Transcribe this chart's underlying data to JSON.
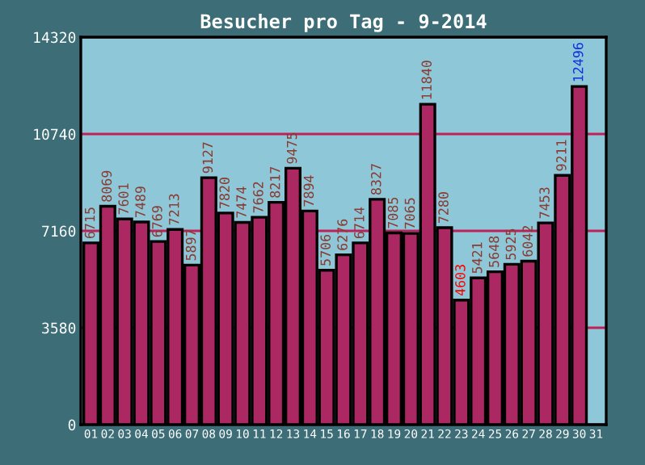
{
  "chart_data": {
    "type": "bar",
    "title": "Besucher pro Tag - 9-2014",
    "categories": [
      "01",
      "02",
      "03",
      "04",
      "05",
      "06",
      "07",
      "08",
      "09",
      "10",
      "11",
      "12",
      "13",
      "14",
      "15",
      "16",
      "17",
      "18",
      "19",
      "20",
      "21",
      "22",
      "23",
      "24",
      "25",
      "26",
      "27",
      "28",
      "29",
      "30",
      "31"
    ],
    "values": [
      6715,
      8069,
      7601,
      7489,
      6769,
      7213,
      5897,
      9127,
      7820,
      7474,
      7662,
      8217,
      9475,
      7894,
      5706,
      6276,
      6714,
      8327,
      7085,
      7065,
      11840,
      7280,
      4603,
      5421,
      5648,
      5925,
      6042,
      7453,
      9211,
      12496,
      null
    ],
    "color": "#ab2862",
    "ylim": [
      0,
      14320
    ],
    "yticks": [
      0,
      3580,
      7160,
      10740,
      14320
    ],
    "grid": "y",
    "data_labels": true
  }
}
